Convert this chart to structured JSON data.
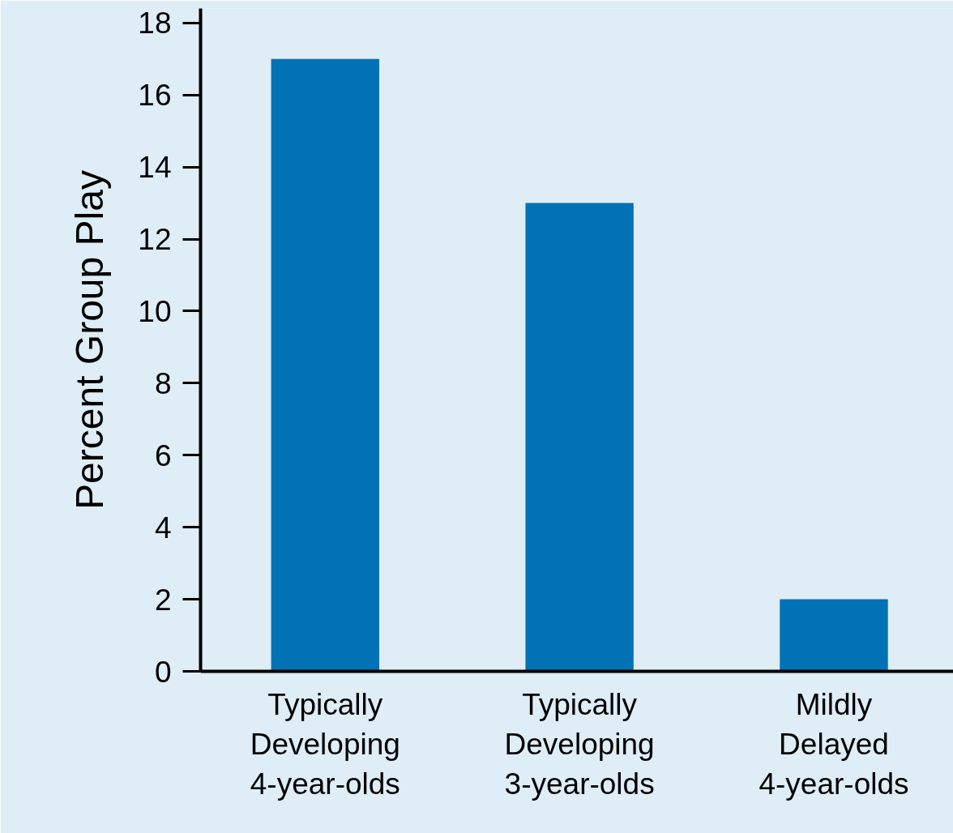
{
  "chart_data": {
    "type": "bar",
    "ylabel": "Percent Group Play",
    "categories": [
      "Typically Developing 4-year-olds",
      "Typically Developing 3-year-olds",
      "Mildly Delayed 4-year-olds"
    ],
    "values": [
      17,
      13,
      2
    ],
    "color": "#0072b5",
    "ylim": [
      0,
      18.4
    ],
    "yticks": [
      0,
      2,
      4,
      6,
      8,
      10,
      12,
      14,
      16,
      18
    ],
    "grid": false
  }
}
